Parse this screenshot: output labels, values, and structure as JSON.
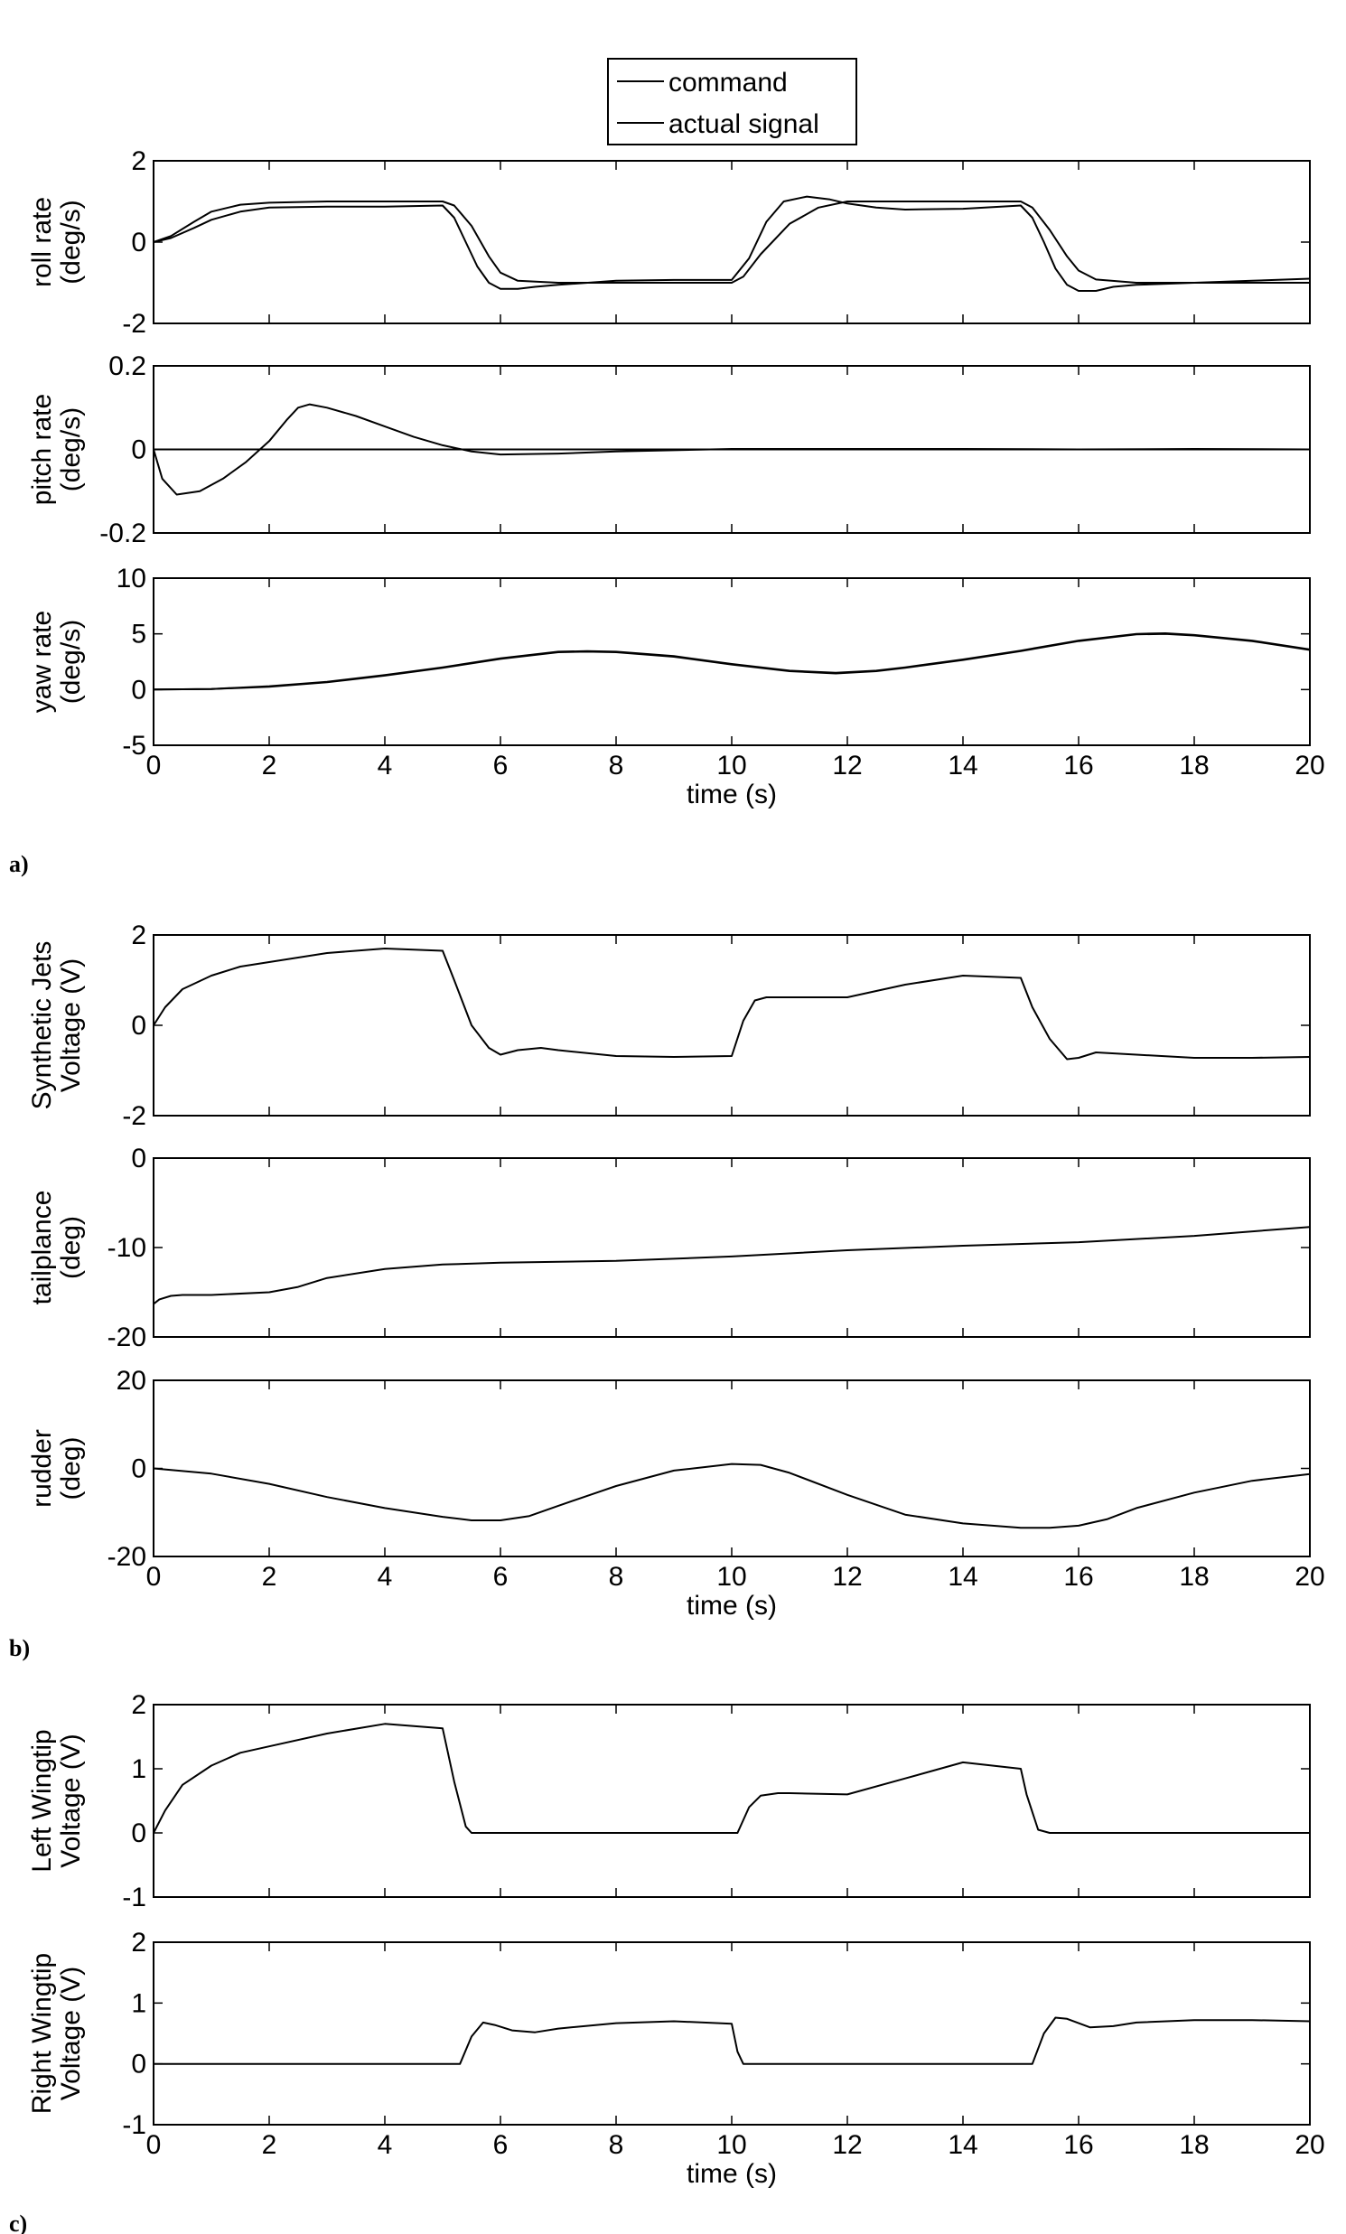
{
  "legend": {
    "entries": [
      "command",
      "actual signal"
    ],
    "position": "top-center"
  },
  "panel_labels": [
    "a)",
    "b)",
    "c)"
  ],
  "chart_data": [
    {
      "type": "line",
      "group": "a",
      "ylabel": [
        "roll rate",
        "(deg/s)"
      ],
      "xlabel": "",
      "xlim": [
        0,
        20
      ],
      "ylim": [
        -2,
        2
      ],
      "yticks": [
        -2,
        0,
        2
      ],
      "xticks": [
        0,
        2,
        4,
        6,
        8,
        10,
        12,
        14,
        16,
        18,
        20
      ],
      "show_xticklabels": false,
      "series": [
        {
          "name": "command",
          "x": [
            0,
            0.3,
            0.7,
            1,
            1.5,
            2,
            3,
            4,
            5,
            5.2,
            5.5,
            5.8,
            6,
            6.3,
            7,
            8,
            9,
            10,
            10.2,
            10.5,
            11,
            11.5,
            12,
            13,
            14,
            15,
            15.2,
            15.5,
            15.8,
            16,
            16.3,
            17,
            18,
            19,
            20
          ],
          "y": [
            0,
            0.15,
            0.5,
            0.75,
            0.92,
            0.97,
            1,
            1,
            1,
            0.9,
            0.4,
            -0.35,
            -0.75,
            -0.95,
            -1,
            -1,
            -1,
            -1,
            -0.85,
            -0.3,
            0.45,
            0.85,
            1,
            1,
            1,
            1,
            0.85,
            0.3,
            -0.35,
            -0.7,
            -0.92,
            -1,
            -1,
            -1,
            -1
          ]
        },
        {
          "name": "actual signal",
          "x": [
            0,
            0.3,
            0.7,
            1,
            1.5,
            2,
            3,
            4,
            5,
            5.2,
            5.4,
            5.6,
            5.8,
            6,
            6.3,
            6.6,
            7,
            8,
            9,
            10,
            10.3,
            10.6,
            10.9,
            11.3,
            11.7,
            12,
            12.5,
            13,
            14,
            15,
            15.2,
            15.4,
            15.6,
            15.8,
            16,
            16.3,
            16.6,
            17,
            18,
            19,
            20
          ],
          "y": [
            0,
            0.1,
            0.35,
            0.55,
            0.75,
            0.85,
            0.87,
            0.87,
            0.9,
            0.6,
            0,
            -0.6,
            -1,
            -1.15,
            -1.15,
            -1.1,
            -1.05,
            -0.95,
            -0.93,
            -0.93,
            -0.4,
            0.5,
            1,
            1.12,
            1.05,
            0.95,
            0.85,
            0.8,
            0.82,
            0.9,
            0.6,
            0,
            -0.65,
            -1.05,
            -1.2,
            -1.2,
            -1.1,
            -1.05,
            -1.0,
            -0.95,
            -0.9
          ]
        }
      ]
    },
    {
      "type": "line",
      "group": "a",
      "ylabel": [
        "pitch rate",
        "(deg/s)"
      ],
      "xlabel": "",
      "xlim": [
        0,
        20
      ],
      "ylim": [
        -0.2,
        0.2
      ],
      "yticks": [
        -0.2,
        0,
        0.2
      ],
      "xticks": [
        0,
        2,
        4,
        6,
        8,
        10,
        12,
        14,
        16,
        18,
        20
      ],
      "show_xticklabels": false,
      "series": [
        {
          "name": "command",
          "x": [
            0,
            20
          ],
          "y": [
            0,
            0
          ]
        },
        {
          "name": "actual signal",
          "x": [
            0,
            0.15,
            0.4,
            0.8,
            1.2,
            1.6,
            2,
            2.3,
            2.5,
            2.7,
            3,
            3.5,
            4,
            4.5,
            5,
            5.5,
            6,
            7,
            8,
            9,
            10,
            12,
            14,
            16,
            18,
            20
          ],
          "y": [
            0,
            -0.07,
            -0.108,
            -0.1,
            -0.07,
            -0.03,
            0.02,
            0.07,
            0.1,
            0.108,
            0.1,
            0.08,
            0.055,
            0.03,
            0.01,
            -0.005,
            -0.012,
            -0.01,
            -0.005,
            -0.002,
            0.001,
            0.001,
            0.001,
            0,
            0.001,
            0
          ]
        }
      ]
    },
    {
      "type": "line",
      "group": "a",
      "ylabel": [
        "yaw rate",
        "(deg/s)"
      ],
      "xlabel": "time (s)",
      "xlim": [
        0,
        20
      ],
      "ylim": [
        -5,
        10
      ],
      "yticks": [
        -5,
        0,
        5,
        10
      ],
      "xticks": [
        0,
        2,
        4,
        6,
        8,
        10,
        12,
        14,
        16,
        18,
        20
      ],
      "show_xticklabels": true,
      "series": [
        {
          "name": "command",
          "x": [
            0,
            1,
            2,
            3,
            4,
            5,
            6,
            7,
            7.5,
            8,
            9,
            10,
            11,
            11.8,
            12.5,
            13,
            14,
            15,
            16,
            17,
            17.5,
            18,
            19,
            20
          ],
          "y": [
            0,
            0.05,
            0.3,
            0.7,
            1.3,
            2,
            2.8,
            3.4,
            3.45,
            3.4,
            3,
            2.3,
            1.7,
            1.5,
            1.7,
            2,
            2.7,
            3.5,
            4.4,
            5.0,
            5.05,
            4.9,
            4.4,
            3.6
          ]
        },
        {
          "name": "actual signal",
          "x": [
            0,
            1,
            2,
            3,
            4,
            5,
            6,
            7,
            7.5,
            8,
            9,
            10,
            11,
            11.8,
            12.5,
            13,
            14,
            15,
            16,
            17,
            17.5,
            18,
            19,
            20
          ],
          "y": [
            0,
            0.05,
            0.25,
            0.65,
            1.25,
            1.95,
            2.75,
            3.35,
            3.4,
            3.35,
            2.95,
            2.25,
            1.65,
            1.45,
            1.65,
            1.95,
            2.65,
            3.45,
            4.35,
            4.95,
            5.0,
            4.85,
            4.35,
            3.55
          ]
        }
      ]
    },
    {
      "type": "line",
      "group": "b",
      "ylabel": [
        "Synthetic Jets",
        "Voltage (V)"
      ],
      "xlabel": "",
      "xlim": [
        0,
        20
      ],
      "ylim": [
        -2,
        2
      ],
      "yticks": [
        -2,
        0,
        2
      ],
      "xticks": [
        0,
        2,
        4,
        6,
        8,
        10,
        12,
        14,
        16,
        18,
        20
      ],
      "show_xticklabels": false,
      "series": [
        {
          "name": "signal",
          "x": [
            0,
            0.2,
            0.5,
            1,
            1.5,
            2,
            3,
            4,
            5,
            5.2,
            5.5,
            5.8,
            6,
            6.3,
            6.7,
            7,
            8,
            9,
            10,
            10.2,
            10.4,
            10.6,
            11,
            12,
            13,
            14,
            15,
            15.2,
            15.5,
            15.8,
            16,
            16.3,
            17,
            18,
            19,
            20
          ],
          "y": [
            0,
            0.4,
            0.8,
            1.1,
            1.3,
            1.4,
            1.6,
            1.7,
            1.65,
            1.0,
            0.0,
            -0.5,
            -0.65,
            -0.55,
            -0.5,
            -0.55,
            -0.68,
            -0.7,
            -0.68,
            0.1,
            0.55,
            0.62,
            0.62,
            0.62,
            0.9,
            1.1,
            1.05,
            0.4,
            -0.3,
            -0.75,
            -0.72,
            -0.6,
            -0.65,
            -0.72,
            -0.72,
            -0.7
          ]
        }
      ]
    },
    {
      "type": "line",
      "group": "b",
      "ylabel": [
        "tailplance",
        "(deg)"
      ],
      "xlabel": "",
      "xlim": [
        0,
        20
      ],
      "ylim": [
        -20,
        0
      ],
      "yticks": [
        -20,
        -10,
        0
      ],
      "xticks": [
        0,
        2,
        4,
        6,
        8,
        10,
        12,
        14,
        16,
        18,
        20
      ],
      "show_xticklabels": false,
      "series": [
        {
          "name": "signal",
          "x": [
            0,
            0.1,
            0.3,
            0.5,
            1,
            2,
            2.5,
            3,
            4,
            5,
            6,
            8,
            10,
            12,
            14,
            16,
            18,
            20
          ],
          "y": [
            -16.3,
            -15.8,
            -15.4,
            -15.3,
            -15.3,
            -15.0,
            -14.4,
            -13.4,
            -12.4,
            -11.9,
            -11.7,
            -11.5,
            -11.0,
            -10.3,
            -9.8,
            -9.4,
            -8.7,
            -7.7
          ]
        }
      ]
    },
    {
      "type": "line",
      "group": "b",
      "ylabel": [
        "rudder",
        "(deg)"
      ],
      "xlabel": "time (s)",
      "xlim": [
        0,
        20
      ],
      "ylim": [
        -20,
        20
      ],
      "yticks": [
        -20,
        0,
        20
      ],
      "xticks": [
        0,
        2,
        4,
        6,
        8,
        10,
        12,
        14,
        16,
        18,
        20
      ],
      "show_xticklabels": true,
      "series": [
        {
          "name": "signal",
          "x": [
            0,
            1,
            2,
            3,
            4,
            5,
            5.5,
            6,
            6.5,
            7,
            8,
            9,
            10,
            10.5,
            11,
            12,
            13,
            14,
            15,
            15.5,
            16,
            16.5,
            17,
            18,
            19,
            20
          ],
          "y": [
            0,
            -1.2,
            -3.5,
            -6.5,
            -9,
            -11,
            -11.8,
            -11.8,
            -10.8,
            -8.5,
            -4,
            -0.5,
            1,
            0.8,
            -1,
            -6,
            -10.5,
            -12.5,
            -13.5,
            -13.5,
            -13,
            -11.5,
            -9,
            -5.5,
            -2.8,
            -1.3
          ]
        }
      ]
    },
    {
      "type": "line",
      "group": "c",
      "ylabel": [
        "Left Wingtip",
        "Voltage (V)"
      ],
      "xlabel": "",
      "xlim": [
        0,
        20
      ],
      "ylim": [
        -1,
        2
      ],
      "yticks": [
        -1,
        0,
        1,
        2
      ],
      "xticks": [
        0,
        2,
        4,
        6,
        8,
        10,
        12,
        14,
        16,
        18,
        20
      ],
      "show_xticklabels": false,
      "series": [
        {
          "name": "signal",
          "x": [
            0,
            0.2,
            0.5,
            1,
            1.5,
            2,
            3,
            4,
            5,
            5.2,
            5.4,
            5.5,
            6,
            8,
            10,
            10.1,
            10.3,
            10.5,
            10.8,
            11,
            12,
            13,
            14,
            15,
            15.1,
            15.3,
            15.5,
            16,
            18,
            20
          ],
          "y": [
            0,
            0.35,
            0.75,
            1.05,
            1.25,
            1.35,
            1.55,
            1.7,
            1.63,
            0.8,
            0.1,
            0,
            0,
            0,
            0,
            0,
            0.4,
            0.58,
            0.62,
            0.62,
            0.6,
            0.85,
            1.1,
            1.0,
            0.6,
            0.05,
            0,
            0,
            0,
            0
          ]
        }
      ]
    },
    {
      "type": "line",
      "group": "c",
      "ylabel": [
        "Right Wingtip",
        "Voltage (V)"
      ],
      "xlabel": "time (s)",
      "xlim": [
        0,
        20
      ],
      "ylim": [
        -1,
        2
      ],
      "yticks": [
        -1,
        0,
        1,
        2
      ],
      "xticks": [
        0,
        2,
        4,
        6,
        8,
        10,
        12,
        14,
        16,
        18,
        20
      ],
      "show_xticklabels": true,
      "series": [
        {
          "name": "signal",
          "x": [
            0,
            2,
            4,
            5,
            5.3,
            5.5,
            5.7,
            5.9,
            6.2,
            6.6,
            7,
            8,
            9,
            10,
            10.1,
            10.2,
            10.5,
            12,
            14,
            15,
            15.2,
            15.4,
            15.6,
            15.8,
            16.2,
            16.6,
            17,
            18,
            19,
            20
          ],
          "y": [
            0,
            0,
            0,
            0,
            0,
            0.45,
            0.68,
            0.64,
            0.55,
            0.52,
            0.58,
            0.67,
            0.7,
            0.66,
            0.2,
            0,
            0,
            0,
            0,
            0,
            0,
            0.5,
            0.76,
            0.74,
            0.6,
            0.62,
            0.68,
            0.72,
            0.72,
            0.7
          ]
        }
      ]
    }
  ]
}
